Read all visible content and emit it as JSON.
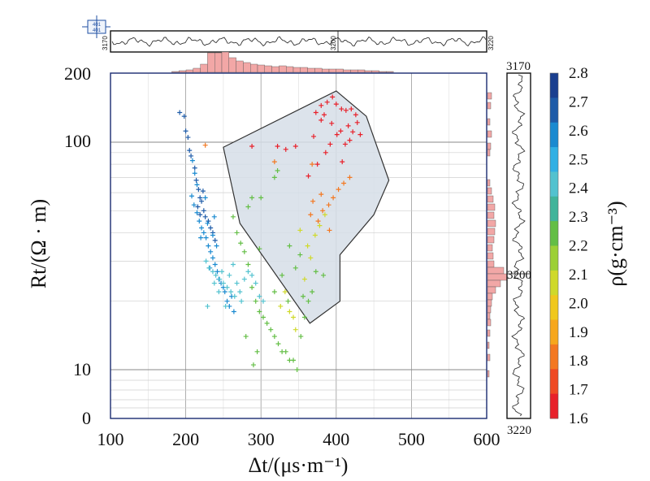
{
  "chart_data": {
    "type": "scatter",
    "x_scale": "linear",
    "y_scale": "log",
    "xlim": [
      100,
      600
    ],
    "ylim": [
      0,
      200
    ],
    "x_ticks": [
      "100",
      "200",
      "300",
      "400",
      "500",
      "600"
    ],
    "y_ticks": [
      "0",
      "10",
      "100",
      "200"
    ],
    "xlabel": "Δt/(μs·m⁻¹)",
    "ylabel": "Rt/(Ω · m)",
    "colorbar": {
      "label": "ρ(g·cm⁻³)",
      "range": [
        1.6,
        2.8
      ],
      "ticks": [
        "1.6",
        "1.7",
        "1.8",
        "1.9",
        "2.0",
        "2.1",
        "2.2",
        "2.3",
        "2.4",
        "2.5",
        "2.6",
        "2.7",
        "2.8"
      ],
      "colors": [
        "#e8202a",
        "#ef4a24",
        "#f37821",
        "#f6a71d",
        "#f0c81c",
        "#cfd92a",
        "#9cd036",
        "#63be45",
        "#41b49a",
        "#52c2cf",
        "#30b0e4",
        "#1a8ad0",
        "#1e5ba8",
        "#1a3f8f"
      ]
    },
    "polygon": [
      [
        250,
        95
      ],
      [
        400,
        168
      ],
      [
        440,
        130
      ],
      [
        470,
        68
      ],
      [
        450,
        48
      ],
      [
        405,
        32
      ],
      [
        405,
        20
      ],
      [
        365,
        16
      ],
      [
        272,
        44
      ],
      [
        250,
        95
      ]
    ],
    "series": [
      {
        "color": "#1e5ba8",
        "points": [
          [
            192,
            135
          ],
          [
            198,
            130
          ],
          [
            200,
            112
          ],
          [
            203,
            105
          ],
          [
            205,
            92
          ],
          [
            212,
            77
          ],
          [
            214,
            68
          ],
          [
            217,
            62
          ],
          [
            219,
            57
          ],
          [
            221,
            55
          ],
          [
            224,
            50
          ],
          [
            226,
            47
          ],
          [
            230,
            45
          ],
          [
            233,
            42
          ],
          [
            236,
            40
          ],
          [
            239,
            37
          ],
          [
            219,
            48
          ],
          [
            216,
            52
          ],
          [
            223,
            61
          ],
          [
            207,
            87
          ]
        ]
      },
      {
        "color": "#1a8ad0",
        "points": [
          [
            208,
            58
          ],
          [
            211,
            53
          ],
          [
            215,
            49
          ],
          [
            218,
            45
          ],
          [
            221,
            42
          ],
          [
            224,
            40
          ],
          [
            227,
            38
          ],
          [
            230,
            35
          ],
          [
            233,
            33
          ],
          [
            236,
            31
          ],
          [
            239,
            29
          ],
          [
            242,
            27
          ],
          [
            244,
            25
          ],
          [
            247,
            24
          ],
          [
            250,
            23
          ],
          [
            252,
            22
          ],
          [
            255,
            20
          ],
          [
            258,
            19
          ],
          [
            261,
            21
          ],
          [
            229,
            44
          ],
          [
            236,
            39
          ],
          [
            241,
            35
          ],
          [
            220,
            38
          ],
          [
            212,
            73
          ],
          [
            209,
            83
          ],
          [
            226,
            57
          ],
          [
            238,
            47
          ],
          [
            264,
            18
          ],
          [
            232,
            28
          ],
          [
            215,
            65
          ]
        ]
      },
      {
        "color": "#52c2cf",
        "points": [
          [
            227,
            30
          ],
          [
            231,
            28
          ],
          [
            236,
            27
          ],
          [
            240,
            26
          ],
          [
            245,
            25
          ],
          [
            250,
            24
          ],
          [
            255,
            23
          ],
          [
            260,
            22
          ],
          [
            265,
            21
          ],
          [
            272,
            22
          ],
          [
            278,
            25
          ],
          [
            283,
            27
          ],
          [
            288,
            26
          ],
          [
            293,
            24
          ],
          [
            298,
            21
          ],
          [
            303,
            20
          ],
          [
            248,
            27
          ],
          [
            244,
            22
          ],
          [
            238,
            24
          ],
          [
            258,
            26
          ],
          [
            268,
            24
          ],
          [
            274,
            20
          ],
          [
            263,
            29
          ],
          [
            229,
            19
          ],
          [
            253,
            19
          ]
        ]
      },
      {
        "color": "#63be45",
        "points": [
          [
            263,
            47
          ],
          [
            268,
            40
          ],
          [
            273,
            36
          ],
          [
            278,
            33
          ],
          [
            283,
            29
          ],
          [
            288,
            23
          ],
          [
            293,
            20
          ],
          [
            298,
            18
          ],
          [
            303,
            17
          ],
          [
            308,
            16
          ],
          [
            313,
            15
          ],
          [
            318,
            14
          ],
          [
            323,
            13
          ],
          [
            328,
            12
          ],
          [
            333,
            12
          ],
          [
            338,
            11
          ],
          [
            343,
            11
          ],
          [
            348,
            10
          ],
          [
            353,
            14
          ],
          [
            358,
            17
          ],
          [
            363,
            20
          ],
          [
            368,
            22
          ],
          [
            328,
            26
          ],
          [
            318,
            22
          ],
          [
            298,
            34
          ],
          [
            288,
            57
          ],
          [
            300,
            57
          ],
          [
            318,
            70
          ],
          [
            322,
            75
          ],
          [
            283,
            52
          ],
          [
            280,
            14
          ],
          [
            295,
            12
          ],
          [
            290,
            10.5
          ],
          [
            336,
            20
          ],
          [
            346,
            28
          ],
          [
            356,
            21
          ],
          [
            373,
            27
          ],
          [
            383,
            26
          ],
          [
            338,
            35
          ],
          [
            352,
            32
          ]
        ]
      },
      {
        "color": "#cfd92a",
        "points": [
          [
            338,
            18
          ],
          [
            343,
            17
          ],
          [
            346,
            15
          ],
          [
            326,
            19
          ],
          [
            332,
            22
          ],
          [
            358,
            25
          ],
          [
            366,
            31
          ],
          [
            372,
            39
          ],
          [
            378,
            43
          ],
          [
            385,
            48
          ],
          [
            362,
            35
          ],
          [
            352,
            41
          ]
        ]
      },
      {
        "color": "#f37821",
        "points": [
          [
            376,
            45
          ],
          [
            382,
            50
          ],
          [
            390,
            53
          ],
          [
            396,
            57
          ],
          [
            403,
            62
          ],
          [
            410,
            66
          ],
          [
            418,
            70
          ],
          [
            380,
            59
          ],
          [
            369,
            55
          ],
          [
            391,
            41
          ],
          [
            366,
            48
          ],
          [
            226,
            97
          ],
          [
            368,
            80
          ],
          [
            318,
            82
          ]
        ]
      },
      {
        "color": "#e8202a",
        "points": [
          [
            373,
            135
          ],
          [
            380,
            145
          ],
          [
            388,
            150
          ],
          [
            395,
            158
          ],
          [
            400,
            147
          ],
          [
            407,
            140
          ],
          [
            413,
            138
          ],
          [
            420,
            140
          ],
          [
            426,
            132
          ],
          [
            416,
            118
          ],
          [
            406,
            112
          ],
          [
            401,
            108
          ],
          [
            392,
            98
          ],
          [
            386,
            90
          ],
          [
            375,
            80
          ],
          [
            363,
            71
          ],
          [
            408,
            82
          ],
          [
            412,
            98
          ],
          [
            418,
            102
          ],
          [
            422,
            111
          ],
          [
            380,
            125
          ],
          [
            384,
            132
          ],
          [
            394,
            121
          ],
          [
            370,
            106
          ],
          [
            346,
            96
          ],
          [
            333,
            93
          ],
          [
            288,
            96
          ],
          [
            322,
            96
          ],
          [
            432,
            108
          ],
          [
            428,
            122
          ]
        ]
      }
    ],
    "depth_track": {
      "top": "3170",
      "marker": "3200",
      "bottom": "3220"
    },
    "header_box": {
      "line1": "401",
      "line2": "401"
    }
  }
}
